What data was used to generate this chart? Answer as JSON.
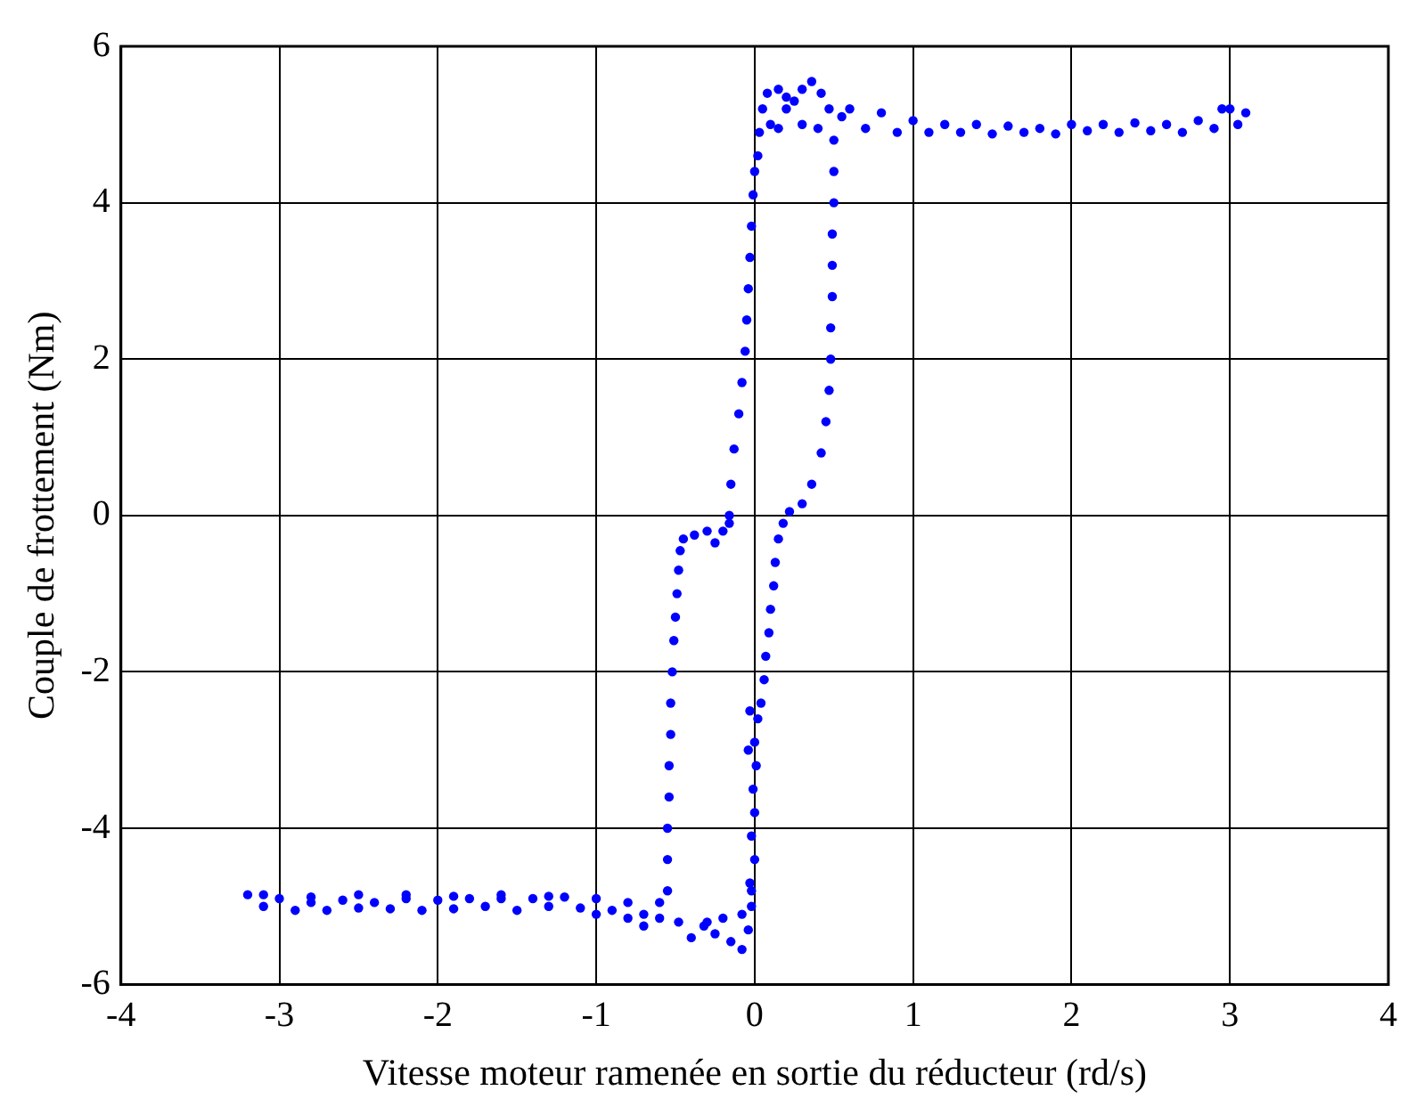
{
  "chart_data": {
    "type": "scatter",
    "xlabel": "Vitesse moteur ramenée en sortie du réducteur (rd/s)",
    "ylabel": "Couple de frottement (Nm)",
    "color": "#0000ff",
    "marker": "circle",
    "grid": true,
    "legend": false,
    "xlim": [
      -4,
      4
    ],
    "xticks": [
      -4,
      -3,
      -2,
      -1,
      0,
      1,
      2,
      3,
      4
    ],
    "ylim": [
      -6,
      6
    ],
    "yticks": [
      -6,
      -4,
      -2,
      0,
      2,
      4,
      6
    ],
    "x": [
      -3.2,
      -3.1,
      -3.0,
      -2.9,
      -2.8,
      -2.7,
      -2.6,
      -2.5,
      -2.4,
      -2.3,
      -2.2,
      -2.1,
      -2.0,
      -1.9,
      -1.8,
      -1.7,
      -1.6,
      -1.5,
      -1.4,
      -1.3,
      -1.2,
      -1.1,
      -1.0,
      -0.9,
      -0.8,
      -0.7,
      -0.6,
      -3.1,
      -2.8,
      -2.5,
      -2.2,
      -1.9,
      -1.6,
      -1.3,
      -1.0,
      -0.8,
      -0.7,
      -0.6,
      -0.55,
      -0.55,
      -0.55,
      -0.54,
      -0.54,
      -0.53,
      -0.53,
      -0.52,
      -0.51,
      -0.5,
      -0.49,
      -0.48,
      -0.47,
      -0.45,
      -0.38,
      -0.3,
      -0.25,
      -0.2,
      -0.16,
      -0.16,
      -0.15,
      -0.13,
      -0.1,
      -0.08,
      -0.06,
      -0.05,
      -0.04,
      -0.03,
      -0.02,
      -0.01,
      0.0,
      0.02,
      0.03,
      0.05,
      0.08,
      0.15,
      0.2,
      0.25,
      0.3,
      0.36,
      0.42,
      0.47,
      0.55,
      0.1,
      0.15,
      0.2,
      0.3,
      0.4,
      0.6,
      0.7,
      0.8,
      0.9,
      1.0,
      1.1,
      1.2,
      1.3,
      1.4,
      1.5,
      1.6,
      1.7,
      1.8,
      1.9,
      2.0,
      2.1,
      2.2,
      2.3,
      2.4,
      2.5,
      2.6,
      2.7,
      2.8,
      2.9,
      3.0,
      3.05,
      3.1,
      2.95,
      0.5,
      0.5,
      0.5,
      0.49,
      0.49,
      0.49,
      0.48,
      0.48,
      0.47,
      0.45,
      0.42,
      0.36,
      0.3,
      0.22,
      0.18,
      0.15,
      0.13,
      0.12,
      0.1,
      0.09,
      0.07,
      0.06,
      0.04,
      0.02,
      0.0,
      0.01,
      -0.01,
      0.0,
      -0.02,
      0.0,
      -0.03,
      -0.02,
      -0.04,
      -0.08,
      -0.15,
      -0.25,
      -0.32,
      -0.4,
      -0.48,
      -0.03,
      -0.04,
      -0.02,
      -0.08,
      -0.2,
      -0.3
    ],
    "values": [
      -4.85,
      -5.0,
      -4.9,
      -5.05,
      -4.95,
      -5.05,
      -4.92,
      -5.02,
      -4.95,
      -5.03,
      -4.9,
      -5.05,
      -4.92,
      -5.03,
      -4.9,
      -5.0,
      -4.9,
      -5.05,
      -4.9,
      -5.0,
      -4.88,
      -5.02,
      -4.9,
      -5.05,
      -4.95,
      -5.1,
      -4.95,
      -4.85,
      -4.88,
      -4.85,
      -4.85,
      -4.87,
      -4.85,
      -4.87,
      -5.1,
      -5.15,
      -5.25,
      -5.15,
      -4.8,
      -4.4,
      -4.0,
      -3.6,
      -3.2,
      -2.8,
      -2.4,
      -2.0,
      -1.6,
      -1.3,
      -1.0,
      -0.7,
      -0.45,
      -0.3,
      -0.25,
      -0.2,
      -0.35,
      -0.2,
      -0.1,
      0.0,
      0.4,
      0.85,
      1.3,
      1.7,
      2.1,
      2.5,
      2.9,
      3.3,
      3.7,
      4.1,
      4.4,
      4.6,
      4.9,
      5.2,
      5.4,
      5.45,
      5.35,
      5.3,
      5.45,
      5.55,
      5.4,
      5.2,
      5.1,
      5.0,
      4.95,
      5.2,
      5.0,
      4.95,
      5.2,
      4.95,
      5.15,
      4.9,
      5.05,
      4.9,
      5.0,
      4.9,
      5.0,
      4.88,
      4.98,
      4.9,
      4.95,
      4.88,
      5.0,
      4.92,
      5.0,
      4.9,
      5.02,
      4.92,
      5.0,
      4.9,
      5.05,
      4.95,
      5.2,
      5.0,
      5.15,
      5.2,
      4.8,
      4.4,
      4.0,
      3.6,
      3.2,
      2.8,
      2.4,
      2.0,
      1.6,
      1.2,
      0.8,
      0.4,
      0.15,
      0.05,
      -0.1,
      -0.3,
      -0.6,
      -0.9,
      -1.2,
      -1.5,
      -1.8,
      -2.1,
      -2.4,
      -2.6,
      -2.9,
      -3.2,
      -3.5,
      -3.8,
      -4.1,
      -4.4,
      -4.7,
      -5.0,
      -5.3,
      -5.55,
      -5.45,
      -5.35,
      -5.25,
      -5.4,
      -5.2,
      -2.5,
      -3.0,
      -4.8,
      -5.1,
      -5.15,
      -5.2
    ]
  }
}
